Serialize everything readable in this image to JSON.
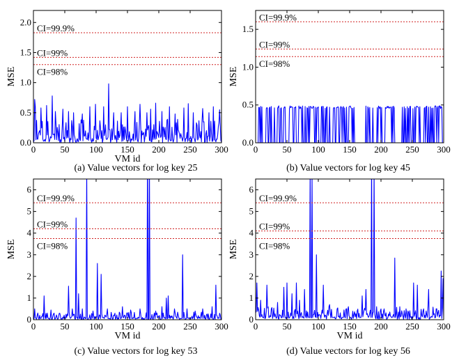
{
  "chart_data": [
    {
      "type": "line",
      "caption": "(a) Value vectors for log key 25",
      "xlabel": "VM id",
      "ylabel": "MSE",
      "xlim": [
        0,
        300
      ],
      "ylim": [
        0,
        2.2
      ],
      "xticks": [
        0,
        50,
        100,
        150,
        200,
        250,
        300
      ],
      "xtick_labels": [
        "0",
        "50",
        "100",
        "150",
        "200",
        "250",
        "300"
      ],
      "yticks": [
        0,
        0.5,
        1.0,
        1.5,
        2.0
      ],
      "ytick_labels": [
        "0.0",
        "0.5",
        "1.0",
        "1.5",
        "2.0"
      ],
      "thresholds": [
        {
          "label": "CI=99.9%",
          "value": 1.83
        },
        {
          "label": "CI=99%",
          "value": 1.42
        },
        {
          "label": "CI=98%",
          "value": 1.3
        }
      ],
      "series": [
        {
          "color": "#0000ff",
          "spikes": [
            [
              2,
              0.72
            ],
            [
              3,
              0.6
            ],
            [
              12,
              0.58
            ],
            [
              21,
              0.62
            ],
            [
              30,
              0.78
            ],
            [
              35,
              0.52
            ],
            [
              47,
              0.56
            ],
            [
              56,
              0.52
            ],
            [
              64,
              0.5
            ],
            [
              78,
              0.48
            ],
            [
              90,
              0.6
            ],
            [
              99,
              0.64
            ],
            [
              112,
              0.6
            ],
            [
              120,
              0.98
            ],
            [
              128,
              0.5
            ],
            [
              140,
              0.5
            ],
            [
              150,
              0.6
            ],
            [
              162,
              0.52
            ],
            [
              170,
              0.64
            ],
            [
              181,
              0.5
            ],
            [
              187,
              0.56
            ],
            [
              195,
              0.66
            ],
            [
              205,
              0.52
            ],
            [
              217,
              0.6
            ],
            [
              226,
              0.48
            ],
            [
              240,
              0.58
            ],
            [
              247,
              0.65
            ],
            [
              255,
              0.5
            ],
            [
              270,
              0.57
            ],
            [
              280,
              0.5
            ],
            [
              287,
              0.6
            ],
            [
              297,
              0.55
            ]
          ],
          "baseline": [
            0.05,
            0.4
          ],
          "seed": 25
        }
      ]
    },
    {
      "type": "line",
      "caption": "(b) Value vectors for log key 45",
      "xlabel": "",
      "ylabel": "MSE",
      "xlim": [
        0,
        300
      ],
      "ylim": [
        0,
        1.75
      ],
      "xticks": [
        0,
        50,
        100,
        150,
        200,
        250,
        300
      ],
      "xtick_labels": [
        "0",
        "50",
        "100",
        "150",
        "200",
        "250",
        "300"
      ],
      "yticks": [
        0,
        0.5,
        1.0,
        1.5
      ],
      "ytick_labels": [
        "0.0",
        "0.5",
        "1.0",
        "1.5"
      ],
      "thresholds": [
        {
          "label": "CI=99.9%",
          "value": 1.6
        },
        {
          "label": "CI=99%",
          "value": 1.24
        },
        {
          "label": "CI=98%",
          "value": 1.14
        }
      ],
      "series": [
        {
          "color": "#0000ff",
          "binary": true,
          "high": 0.47,
          "gaps": [
            [
              158,
              175
            ]
          ],
          "seed": 45
        }
      ]
    },
    {
      "type": "line",
      "caption": "(c) Value vectors for log key 53",
      "xlabel": "VM id",
      "ylabel": "MSE",
      "xlim": [
        0,
        300
      ],
      "ylim": [
        0,
        6.5
      ],
      "xticks": [
        0,
        50,
        100,
        150,
        200,
        250,
        300
      ],
      "xtick_labels": [
        "0",
        "50",
        "100",
        "150",
        "200",
        "250",
        "300"
      ],
      "yticks": [
        0,
        1,
        2,
        3,
        4,
        5,
        6
      ],
      "ytick_labels": [
        "0",
        "1",
        "2",
        "3",
        "4",
        "5",
        "6"
      ],
      "thresholds": [
        {
          "label": "CI=99.9%",
          "value": 5.4
        },
        {
          "label": "CI=99%",
          "value": 4.2
        },
        {
          "label": "CI=98%",
          "value": 3.75
        }
      ],
      "series": [
        {
          "color": "#0000ff",
          "spikes": [
            [
              2,
              0.5
            ],
            [
              10,
              0.2
            ],
            [
              17,
              1.1
            ],
            [
              28,
              0.45
            ],
            [
              42,
              0.3
            ],
            [
              56,
              1.55
            ],
            [
              62,
              0.5
            ],
            [
              68,
              4.7
            ],
            [
              72,
              1.2
            ],
            [
              78,
              0.5
            ],
            [
              85,
              7.0
            ],
            [
              95,
              0.4
            ],
            [
              102,
              2.6
            ],
            [
              108,
              2.1
            ],
            [
              118,
              0.5
            ],
            [
              130,
              0.3
            ],
            [
              142,
              0.6
            ],
            [
              155,
              0.45
            ],
            [
              170,
              0.5
            ],
            [
              182,
              8.0
            ],
            [
              185,
              7.5
            ],
            [
              195,
              0.4
            ],
            [
              205,
              0.6
            ],
            [
              212,
              1.0
            ],
            [
              215,
              1.1
            ],
            [
              225,
              0.5
            ],
            [
              238,
              3.0
            ],
            [
              245,
              0.5
            ],
            [
              258,
              0.4
            ],
            [
              270,
              0.5
            ],
            [
              285,
              0.6
            ],
            [
              291,
              1.6
            ],
            [
              297,
              0.3
            ]
          ],
          "baseline": [
            0.05,
            0.35
          ],
          "seed": 53
        }
      ]
    },
    {
      "type": "line",
      "caption": "(d) Value vectors for log key 56",
      "xlabel": "VM id",
      "ylabel": "MSE",
      "xlim": [
        0,
        300
      ],
      "ylim": [
        0,
        6.5
      ],
      "xticks": [
        0,
        50,
        100,
        150,
        200,
        250,
        300
      ],
      "xtick_labels": [
        "0",
        "50",
        "100",
        "150",
        "200",
        "250",
        "300"
      ],
      "yticks": [
        0,
        1,
        2,
        3,
        4,
        5,
        6
      ],
      "ytick_labels": [
        "0",
        "1",
        "2",
        "3",
        "4",
        "5",
        "6"
      ],
      "thresholds": [
        {
          "label": "CI=99.9%",
          "value": 5.4
        },
        {
          "label": "CI=99%",
          "value": 4.1
        },
        {
          "label": "CI=98%",
          "value": 3.75
        }
      ],
      "series": [
        {
          "color": "#0000ff",
          "spikes": [
            [
              2,
              1.7
            ],
            [
              8,
              0.9
            ],
            [
              18,
              1.6
            ],
            [
              25,
              0.5
            ],
            [
              35,
              0.8
            ],
            [
              45,
              1.5
            ],
            [
              50,
              1.7
            ],
            [
              58,
              1.2
            ],
            [
              65,
              1.7
            ],
            [
              70,
              0.9
            ],
            [
              78,
              1.4
            ],
            [
              87,
              7.0
            ],
            [
              90,
              6.8
            ],
            [
              97,
              3.0
            ],
            [
              108,
              1.6
            ],
            [
              118,
              0.7
            ],
            [
              130,
              0.5
            ],
            [
              148,
              0.6
            ],
            [
              162,
              0.4
            ],
            [
              170,
              1.1
            ],
            [
              176,
              1.4
            ],
            [
              185,
              7.5
            ],
            [
              189,
              7.0
            ],
            [
              193,
              0.6
            ],
            [
              205,
              0.5
            ],
            [
              222,
              2.85
            ],
            [
              230,
              0.6
            ],
            [
              240,
              0.5
            ],
            [
              252,
              1.7
            ],
            [
              258,
              1.6
            ],
            [
              268,
              0.5
            ],
            [
              276,
              1.4
            ],
            [
              288,
              0.5
            ],
            [
              296,
              2.25
            ],
            [
              299,
              1.9
            ]
          ],
          "baseline": [
            0.1,
            0.6
          ],
          "seed": 56
        }
      ]
    }
  ]
}
